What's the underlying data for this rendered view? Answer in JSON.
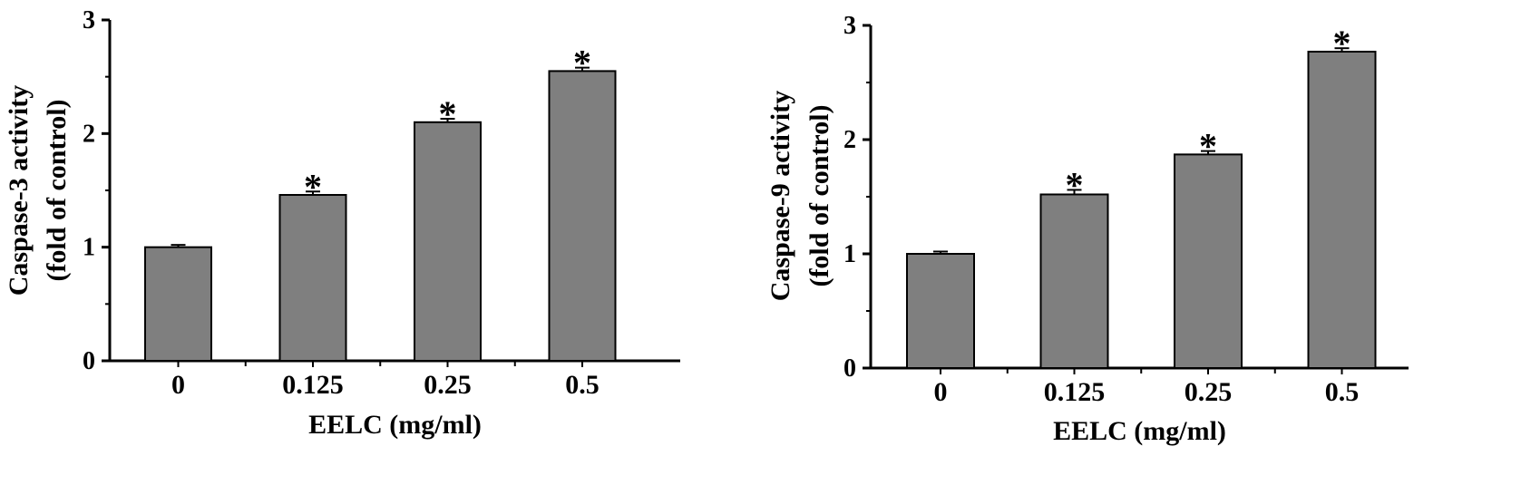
{
  "chart_data": [
    {
      "type": "bar",
      "categories": [
        "0",
        "0.125",
        "0.25",
        "0.5"
      ],
      "values": [
        1.0,
        1.46,
        2.1,
        2.55
      ],
      "errors": [
        0.02,
        0.03,
        0.03,
        0.03
      ],
      "significance": [
        "",
        "*",
        "*",
        "*"
      ],
      "xlabel": "EELC  (mg/ml)",
      "ylabel_line1": "Caspase-3 activity",
      "ylabel_line2": "(fold of control)",
      "ylim": [
        0,
        3
      ],
      "yticks": [
        "0",
        "1",
        "2",
        "3"
      ],
      "bar_color": "#7f7f7f",
      "grid": false
    },
    {
      "type": "bar",
      "categories": [
        "0",
        "0.125",
        "0.25",
        "0.5"
      ],
      "values": [
        1.0,
        1.52,
        1.87,
        2.77
      ],
      "errors": [
        0.02,
        0.04,
        0.03,
        0.03
      ],
      "significance": [
        "",
        "*",
        "*",
        "*"
      ],
      "xlabel": "EELC  (mg/ml)",
      "ylabel_line1": "Caspase-9 activity",
      "ylabel_line2": "(fold of control)",
      "ylim": [
        0,
        3
      ],
      "yticks": [
        "0",
        "1",
        "2",
        "3"
      ],
      "bar_color": "#7f7f7f",
      "grid": false
    }
  ]
}
